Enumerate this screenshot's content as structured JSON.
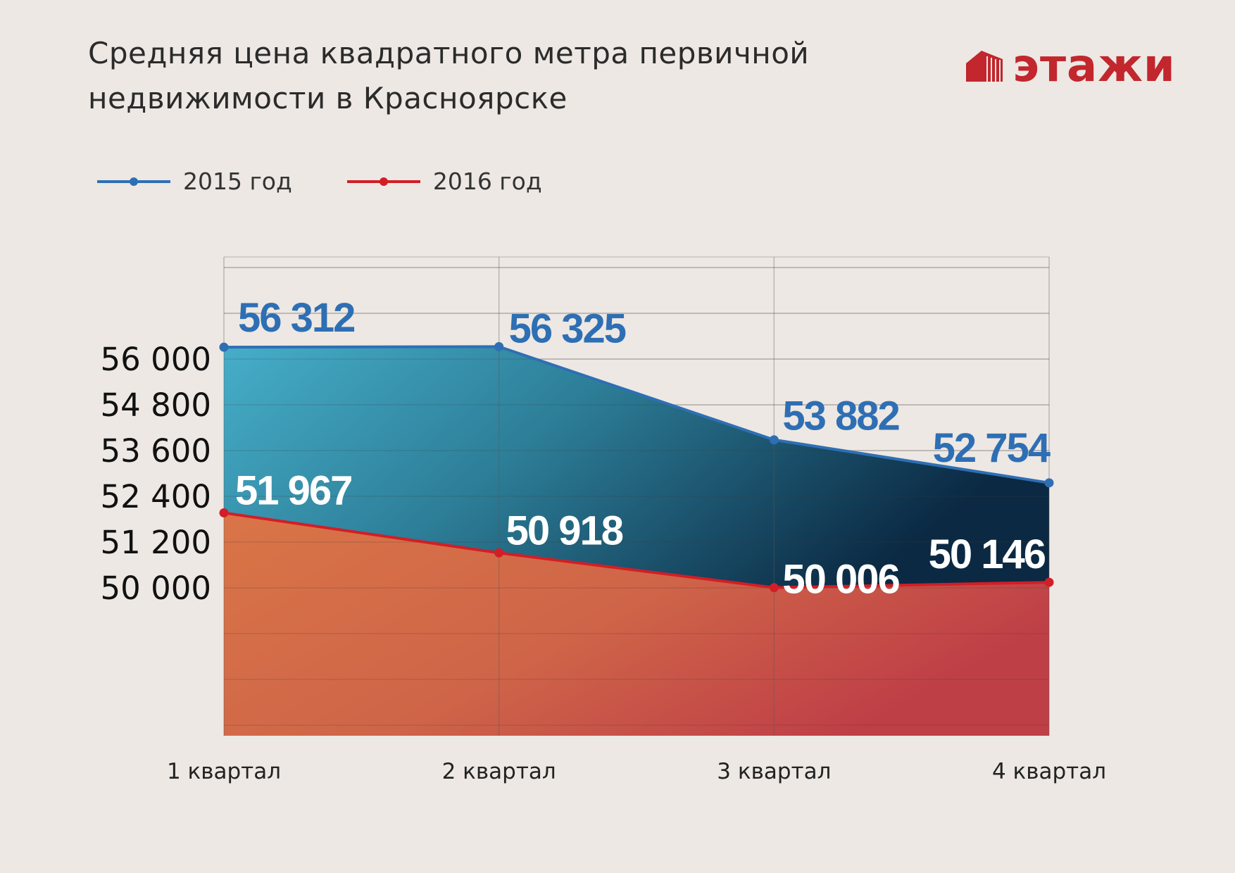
{
  "title_line1": "Средняя цена квадратного метра первичной",
  "title_line2": "недвижимости в Красноярске",
  "logo": {
    "text": "этажи",
    "color": "#c1272d"
  },
  "legend": [
    {
      "label": "2015 год",
      "color": "#2e6fb4"
    },
    {
      "label": "2016 год",
      "color": "#d21e26"
    }
  ],
  "chart_data": {
    "type": "area",
    "title": "Средняя цена квадратного метра первичной недвижимости в Красноярске",
    "categories": [
      "1 квартал",
      "2 квартал",
      "3 квартал",
      "4 квартал"
    ],
    "series": [
      {
        "name": "2015 год",
        "values": [
          56312,
          56325,
          53882,
          52754
        ],
        "labels": [
          "56 312",
          "56 325",
          "53 882",
          "52 754"
        ],
        "line_color": "#2e6fb4",
        "label_color": "#2e6fb4"
      },
      {
        "name": "2016 год",
        "values": [
          51967,
          50918,
          50006,
          50146
        ],
        "labels": [
          "51 967",
          "50 918",
          "50 006",
          "50 146"
        ],
        "line_color": "#d21e26",
        "label_color": "#ffffff"
      }
    ],
    "yticks": [
      56000,
      54800,
      53600,
      52400,
      51200,
      50000
    ],
    "ytick_labels": [
      "56 000",
      "54 800",
      "53 600",
      "52 400",
      "51 200",
      "50 000"
    ],
    "xlabel": "",
    "ylabel": "",
    "grid": true
  }
}
